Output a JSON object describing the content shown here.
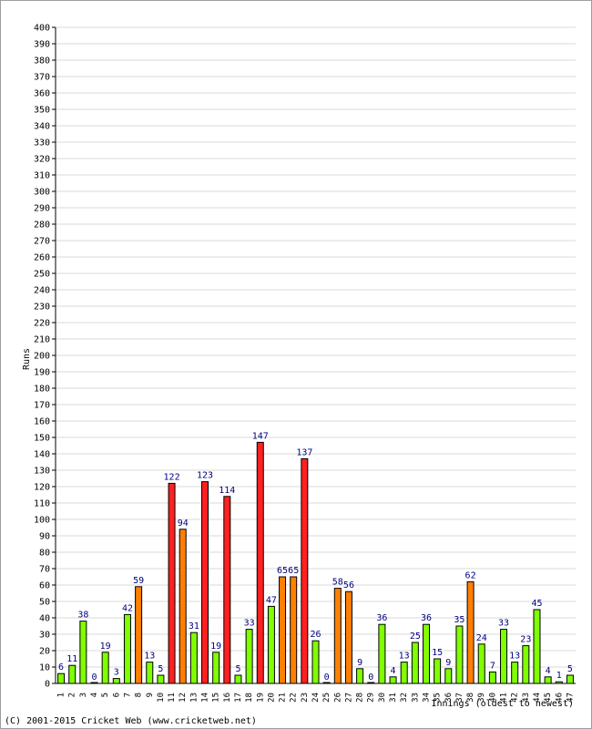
{
  "chart_data": {
    "type": "bar",
    "title": "",
    "ylabel": "Runs",
    "xlabel": "Innings (oldest to newest)",
    "ylim": [
      0,
      400
    ],
    "ytick_step": 10,
    "grid": true,
    "legend": "none",
    "categories": [
      "1",
      "2",
      "3",
      "4",
      "5",
      "6",
      "7",
      "8",
      "9",
      "10",
      "11",
      "12",
      "13",
      "14",
      "15",
      "16",
      "17",
      "18",
      "19",
      "20",
      "21",
      "22",
      "23",
      "24",
      "25",
      "26",
      "27",
      "28",
      "29",
      "30",
      "31",
      "32",
      "33",
      "34",
      "35",
      "36",
      "37",
      "38",
      "39",
      "40",
      "41",
      "42",
      "43",
      "44",
      "45",
      "46",
      "47"
    ],
    "values": [
      6,
      11,
      38,
      0,
      19,
      3,
      42,
      59,
      13,
      5,
      122,
      94,
      31,
      123,
      19,
      114,
      5,
      33,
      147,
      47,
      65,
      65,
      137,
      26,
      0,
      58,
      56,
      9,
      0,
      36,
      4,
      13,
      25,
      36,
      15,
      9,
      35,
      62,
      24,
      7,
      33,
      13,
      23,
      45,
      4,
      1,
      5
    ],
    "colors": {
      "under_50": "#80ff00",
      "fifty": "#ff8000",
      "hundred": "#ff2020",
      "value_label": "#000080",
      "grid": "#d9d9d9"
    }
  },
  "footer": {
    "copyright": "(C) 2001-2015 Cricket Web (www.cricketweb.net)"
  }
}
